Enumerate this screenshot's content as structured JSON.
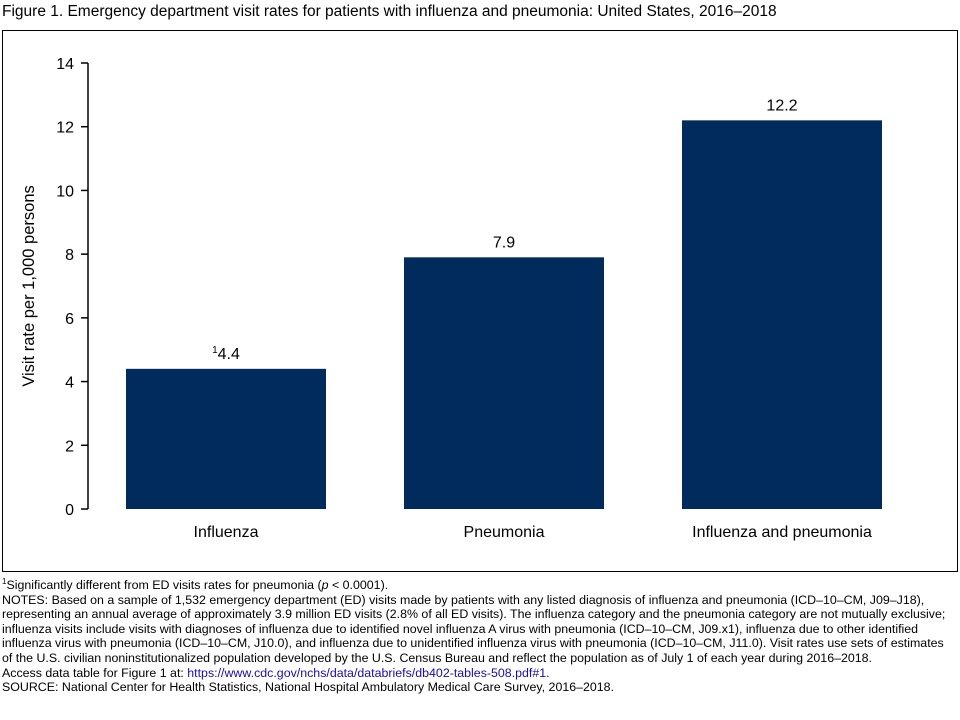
{
  "chart_data": {
    "type": "bar",
    "title": "Figure 1. Emergency department visit rates for patients with influenza and pneumonia: United States, 2016–2018",
    "y_label": "Visit rate per 1,000 persons",
    "categories": [
      "Influenza",
      "Pneumonia",
      "Influenza and pneumonia"
    ],
    "values": [
      4.4,
      7.9,
      12.2
    ],
    "value_labels": [
      "4.4",
      "7.9",
      "12.2"
    ],
    "value_label_markers": [
      "1",
      null,
      null
    ],
    "color": "#002b5c",
    "ylim": [
      0,
      14
    ],
    "yticks": [
      0,
      2,
      4,
      6,
      8,
      10,
      12,
      14
    ],
    "grid": false
  },
  "footnotes": {
    "significance": {
      "marker": "1",
      "before": "Significantly different from ED visits rates for pneumonia (",
      "italic": "p",
      "after": " < 0.0001)."
    },
    "notes": "NOTES: Based on a sample of 1,532 emergency department (ED) visits made by patients with any listed diagnosis of influenza and pneumonia (ICD–10–CM, J09–J18), representing an annual average of approximately 3.9 million ED visits (2.8% of all ED visits). The influenza category and the pneumonia category are not mutually exclusive; influenza visits include visits with diagnoses of influenza due to identified novel influenza A virus with pneumonia (ICD–10–CM, J09.x1), influenza due to other identified influenza virus with pneumonia (ICD–10–CM, J10.0), and influenza due to unidentified influenza virus with pneumonia (ICD–10–CM, J11.0). Visit rates use sets of estimates of the U.S. civilian noninstitutionalized population developed by the U.S. Census Bureau and reflect the population as of July 1 of each year during 2016–2018.",
    "access": {
      "before": "Access data table for Figure 1 at: ",
      "link": "https://www.cdc.gov/nchs/data/databriefs/db402-tables-508.pdf#1",
      "after": "."
    },
    "source": "SOURCE: National Center for Health Statistics, National Hospital Ambulatory Medical Care Survey, 2016–2018."
  }
}
